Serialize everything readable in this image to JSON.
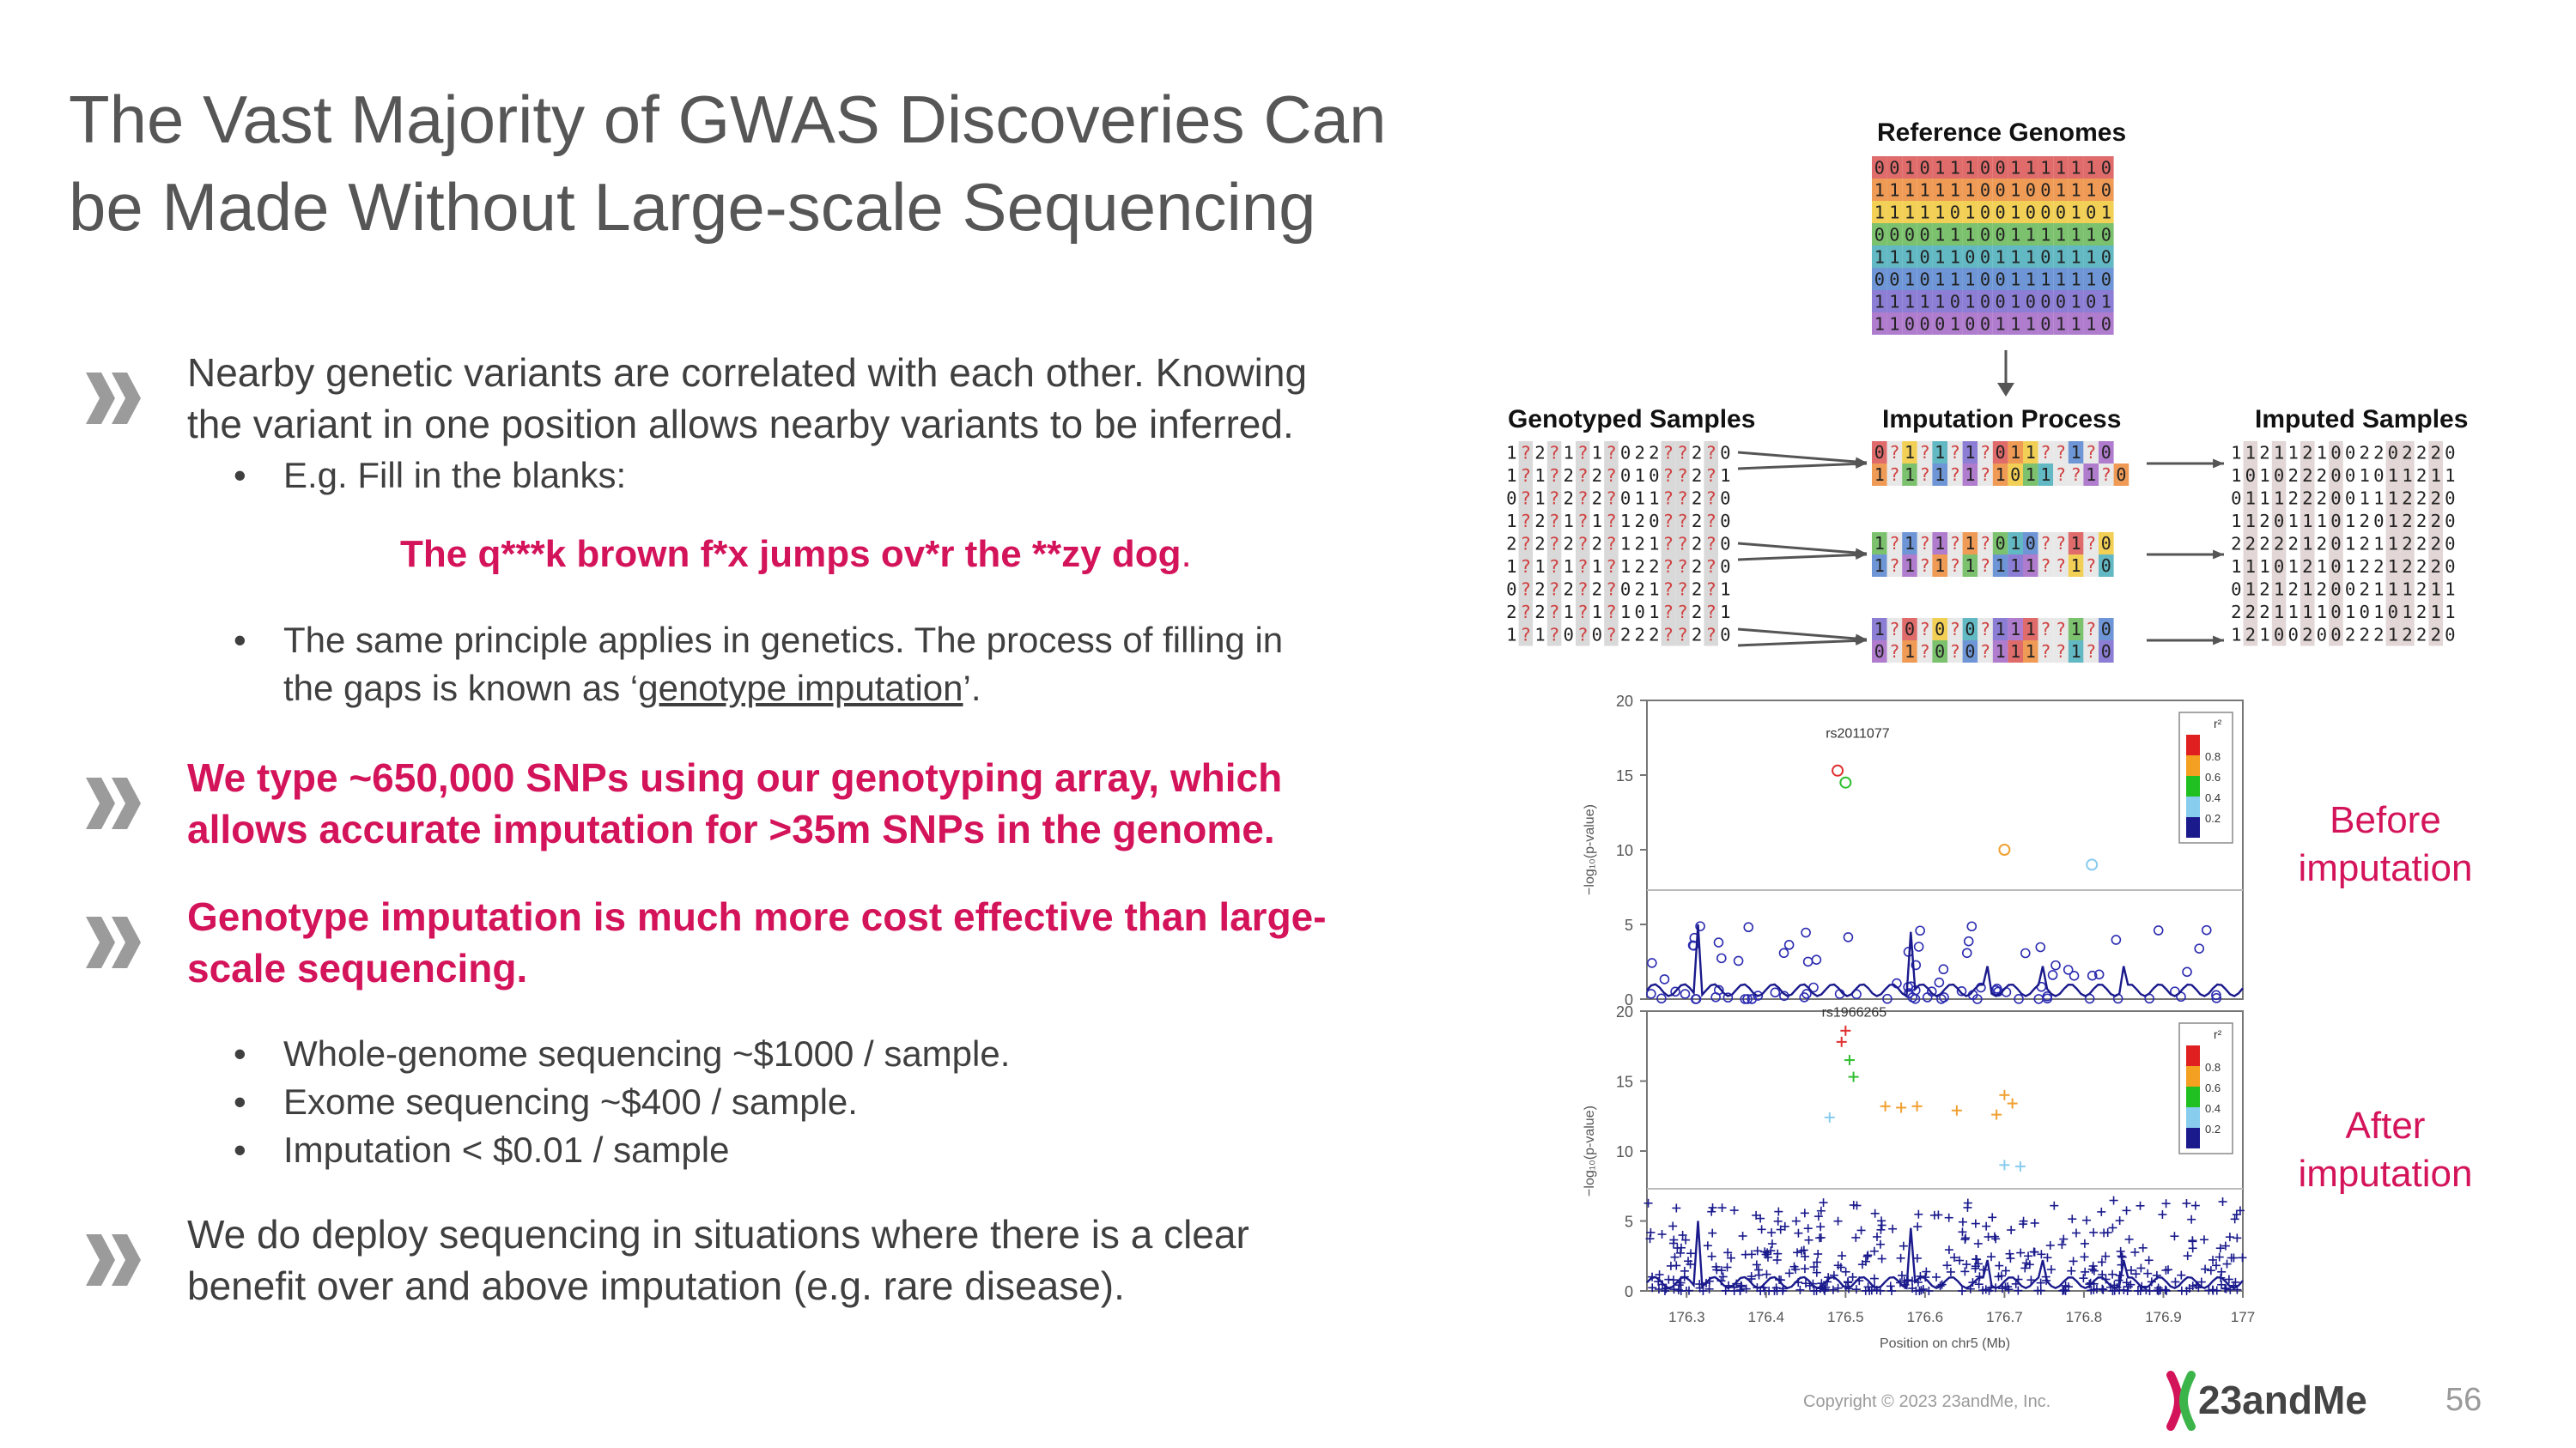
{
  "slide": {
    "title_line1": "The Vast Majority of GWAS Discoveries Can",
    "title_line2": "be Made Without Large-scale Sequencing",
    "p1_line1": "Nearby genetic variants are correlated with each other. Knowing",
    "p1_line2": "the variant in one position allows nearby variants to be inferred.",
    "b1": "E.g. Fill in the blanks:",
    "example": "The q***k brown f*x jumps ov*r the **zy dog",
    "example_end": ".",
    "b2_line1": "The same principle applies in genetics. The process of filling in",
    "b2_line2_pre": "the gaps is known as ‘",
    "b2_line2_link": "genotype imputation",
    "b2_line2_post": "’.",
    "p2_line1": "We type ~650,000 SNPs using our genotyping array, which",
    "p2_line2": "allows accurate imputation for >35m SNPs in the genome.",
    "p3_line1": "Genotype imputation is much more cost effective than large-",
    "p3_line2": "scale sequencing.",
    "cost1": "Whole-genome sequencing ~$1000 / sample.",
    "cost2": "Exome sequencing ~$400 / sample.",
    "cost3": "Imputation < $0.01 / sample",
    "p4_line1": "We do deploy sequencing in situations where there is a clear",
    "p4_line2": "benefit over and above imputation (e.g. rare disease).",
    "bullet_glyph": "•"
  },
  "figure": {
    "reference_label": "Reference Genomes",
    "genotyped_label": "Genotyped Samples",
    "imputation_label": "Imputation Process",
    "imputed_label": "Imputed Samples",
    "reference_rows": [
      "0 0 1 0 1 1 1 0 0 1 1 1 1 1 1 0",
      "1 1 1 1 1 1 1 0 0 1 0 0 1 1 1 0",
      "1 1 1 1 1 0 1 0 0 1 0 0 0 1 0 1",
      "0 0 0 0 1 1 1 0 0 1 1 1 1 1 1 0",
      "1 1 1 0 1 1 0 0 1 1 1 0 1 1 1 0",
      "0 0 1 0 1 1 1 0 0 1 1 1 1 1 1 0",
      "1 1 1 1 1 0 1 0 0 1 0 0 0 1 0 1",
      "1 1 0 0 0 1 0 0 1 1 1 0 1 1 1 0"
    ],
    "genotyped_rows": [
      "1 ? 2 ? 1 ? 1 ? 0 2 2 ? ? 2 ? 0",
      "1 ? 1 ? 2 ? 2 ? 0 1 0 ? ? 2 ? 1",
      "0 ? 1 ? 2 ? 2 ? 0 1 1 ? ? 2 ? 0",
      "1 ? 2 ? 1 ? 1 ? 1 2 0 ? ? 2 ? 0",
      "2 ? 2 ? 2 ? 2 ? 1 2 1 ? ? 2 ? 0",
      "1 ? 1 ? 1 ? 1 ? 1 2 2 ? ? 2 ? 0",
      "0 ? 2 ? 2 ? 2 ? 0 2 1 ? ? 2 ? 1",
      "2 ? 2 ? 1 ? 1 ? 1 0 1 ? ? 2 ? 1",
      "1 ? 1 ? 0 ? 0 ? 2 2 2 ? ? 2 ? 0"
    ],
    "imputation_rows": [
      "0 ? 1 ? 1 ? 1 ? 0 1 1 ? ? 1 ? 0",
      "1 ? 1 ? 1 ? 1 ? 1 0 1 1 ? ? 1 ? 0",
      "1 ? 1 ? 1 ? 1 ? 0 1 0 ? ? 1 ? 0",
      "1 ? 1 ? 1 ? 1 ? 1 1 1 ? ? 1 ? 0",
      "1 ? 0 ? 0 ? 0 ? 1 1 1 ? ? 1 ? 0",
      "0 ? 1 ? 0 ? 0 ? 1 1 1 ? ? 1 ? 0"
    ],
    "imputed_rows": [
      "1 1 2 1 1 2 1 0 0 2 2 0 2 2 2 0",
      "1 0 1 0 2 2 2 0 0 1 0 1 1 2 1 1",
      "0 1 1 1 2 2 2 0 0 1 1 1 2 2 2 0",
      "1 1 2 0 1 1 1 0 1 2 0 1 2 2 2 0",
      "2 2 2 2 2 1 2 0 1 2 1 1 2 2 2 0",
      "1 1 1 0 1 2 1 0 1 2 2 1 2 2 2 0",
      "0 1 2 1 2 1 2 0 0 2 1 1 1 2 1 1",
      "2 2 2 1 1 1 1 0 1 0 1 0 1 2 1 1",
      "1 2 1 0 0 2 0 0 2 2 2 1 2 2 2 0"
    ],
    "row_colors": [
      "#e06b6b",
      "#ef9a55",
      "#f2cf55",
      "#7cc26e",
      "#62b8c3",
      "#6e96d6",
      "#8c7ed4",
      "#b07ccd"
    ]
  },
  "chart_data": [
    {
      "type": "scatter",
      "title": "",
      "annotation": "rs2011077",
      "ylabel": "−log₁₀(p-value)",
      "xlabel": "",
      "xlim": [
        176.25,
        177.0
      ],
      "ylim": [
        0,
        20
      ],
      "yticks": [
        "0",
        "5",
        "10",
        "15",
        "20"
      ],
      "threshold": 7.3,
      "legend_title": "r²",
      "legend_ticks": [
        "0.8",
        "0.6",
        "0.4",
        "0.2"
      ],
      "highlight_points": [
        {
          "x": 176.49,
          "y": 15.3,
          "color": "#e03030"
        },
        {
          "x": 176.5,
          "y": 14.5,
          "color": "#2fbf2f"
        },
        {
          "x": 176.7,
          "y": 10.0,
          "color": "#f0a030"
        },
        {
          "x": 176.81,
          "y": 9.0,
          "color": "#88ccee"
        }
      ],
      "side_label_line1": "Before",
      "side_label_line2": "imputation"
    },
    {
      "type": "scatter",
      "title": "",
      "annotation": "rs1966265",
      "ylabel": "−log₁₀(p-value)",
      "xlabel": "Position on chr5 (Mb)",
      "xlim": [
        176.25,
        177.0
      ],
      "ylim": [
        0,
        20
      ],
      "yticks": [
        "0",
        "5",
        "10",
        "15",
        "20"
      ],
      "xticks": [
        "176.3",
        "176.4",
        "176.5",
        "176.6",
        "176.7",
        "176.8",
        "176.9",
        "177"
      ],
      "threshold": 7.3,
      "legend_title": "r²",
      "legend_ticks": [
        "0.8",
        "0.6",
        "0.4",
        "0.2"
      ],
      "highlight_points": [
        {
          "x": 176.5,
          "y": 18.6,
          "color": "#e03030"
        },
        {
          "x": 176.495,
          "y": 17.8,
          "color": "#e03030"
        },
        {
          "x": 176.505,
          "y": 16.5,
          "color": "#2fbf2f"
        },
        {
          "x": 176.51,
          "y": 15.3,
          "color": "#2fbf2f"
        },
        {
          "x": 176.55,
          "y": 13.2,
          "color": "#f0a030"
        },
        {
          "x": 176.57,
          "y": 13.1,
          "color": "#f0a030"
        },
        {
          "x": 176.59,
          "y": 13.2,
          "color": "#f0a030"
        },
        {
          "x": 176.64,
          "y": 12.9,
          "color": "#f0a030"
        },
        {
          "x": 176.7,
          "y": 14.0,
          "color": "#f0a030"
        },
        {
          "x": 176.71,
          "y": 13.4,
          "color": "#f0a030"
        },
        {
          "x": 176.69,
          "y": 12.6,
          "color": "#f0a030"
        },
        {
          "x": 176.48,
          "y": 12.4,
          "color": "#88ccee"
        },
        {
          "x": 176.7,
          "y": 9.0,
          "color": "#88ccee"
        },
        {
          "x": 176.72,
          "y": 8.9,
          "color": "#88ccee"
        }
      ],
      "side_label_line1": "After",
      "side_label_line2": "imputation"
    }
  ],
  "footer": {
    "copyright": "Copyright © 2023 23andMe, Inc.",
    "logo": "23andMe",
    "page_number": "56"
  },
  "colors": {
    "accent": "#d4145a",
    "text": "#3f3f3f",
    "title": "#565656",
    "plot_blue": "#1a1a8c"
  }
}
